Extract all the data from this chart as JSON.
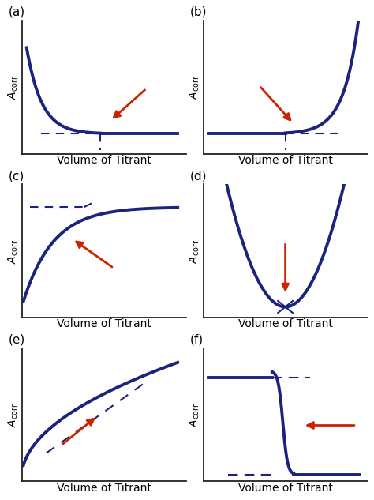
{
  "bg_color": "#ffffff",
  "curve_color": "#1a237e",
  "arrow_color": "#cc2200",
  "curve_lw": 2.8,
  "dash_lw": 1.5,
  "labels": [
    "(a)",
    "(b)",
    "(c)",
    "(d)",
    "(e)",
    "(f)"
  ],
  "xlabel": "Volume of Titrant",
  "xlabel_fontsize": 10,
  "label_fontsize": 11,
  "ylabel_fontsize": 10
}
